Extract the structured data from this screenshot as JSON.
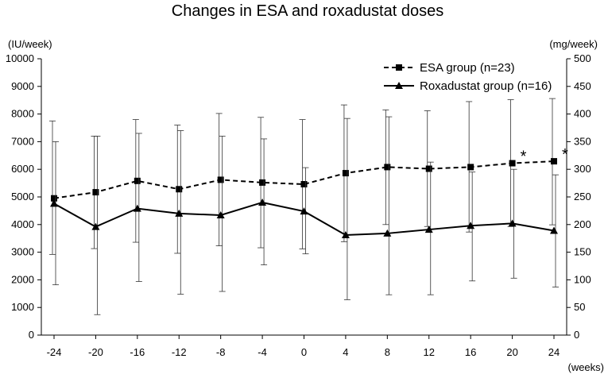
{
  "chart_data": {
    "type": "line",
    "title": "Changes in ESA and roxadustat doses",
    "y_left_unit": "(IU/week)",
    "y_right_unit": "(mg/week)",
    "x_unit": "(weeks)",
    "x": [
      -24,
      -20,
      -16,
      -12,
      -8,
      -4,
      0,
      4,
      8,
      12,
      16,
      20,
      24
    ],
    "x_tick_labels": [
      "-24",
      "-20",
      "-16",
      "-12",
      "-8",
      "-4",
      "0",
      "4",
      "8",
      "12",
      "16",
      "20",
      "24"
    ],
    "y_left_range": [
      0,
      10000
    ],
    "y_left_ticks": [
      0,
      1000,
      2000,
      3000,
      4000,
      5000,
      6000,
      7000,
      8000,
      9000,
      10000
    ],
    "y_right_range": [
      0,
      500
    ],
    "y_right_ticks": [
      0,
      50,
      100,
      150,
      200,
      250,
      300,
      350,
      400,
      450,
      500
    ],
    "series": [
      {
        "name": "ESA group (n=23)",
        "axis": "left",
        "line_style": "dashed",
        "marker": "square",
        "values": [
          4950,
          5170,
          5580,
          5280,
          5620,
          5520,
          5460,
          5860,
          6080,
          6020,
          6080,
          6220,
          6290
        ],
        "error_upper": [
          7750,
          7200,
          7800,
          7600,
          8020,
          7880,
          7800,
          8330,
          8150,
          8120,
          8450,
          8520,
          8560
        ],
        "error_lower": [
          2920,
          3130,
          3360,
          2960,
          3230,
          3160,
          3120,
          3380,
          4000,
          3930,
          3730,
          3930,
          3990
        ]
      },
      {
        "name": "Roxadustat group (n=16)",
        "axis": "right",
        "line_style": "solid",
        "marker": "triangle",
        "values": [
          238,
          196,
          229,
          220,
          217,
          240,
          224,
          181,
          184,
          191,
          198,
          202,
          189
        ],
        "error_upper": [
          350,
          360,
          365,
          370,
          360,
          355,
          303,
          392,
          395,
          313,
          295,
          300,
          290
        ],
        "error_lower": [
          91,
          37,
          97,
          74,
          79,
          127,
          147,
          64,
          73,
          73,
          98,
          103,
          87
        ]
      }
    ],
    "annotations": [
      {
        "text": "*",
        "series": "ESA group (n=23)",
        "x": 20
      },
      {
        "text": "*",
        "series": "ESA group (n=23)",
        "x": 24
      }
    ],
    "legend_position": "top-right"
  }
}
